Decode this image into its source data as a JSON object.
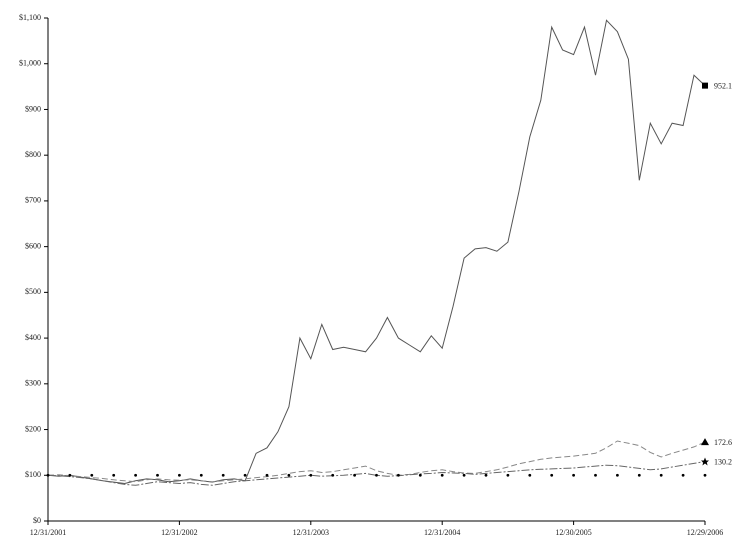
{
  "chart_data": {
    "type": "line",
    "categories": [
      "12/31/2001",
      null,
      null,
      null,
      null,
      null,
      null,
      null,
      null,
      null,
      null,
      null,
      "12/31/2002",
      null,
      null,
      null,
      null,
      null,
      null,
      null,
      null,
      null,
      null,
      null,
      "12/31/2003",
      null,
      null,
      null,
      null,
      null,
      null,
      null,
      null,
      null,
      null,
      null,
      "12/31/2004",
      null,
      null,
      null,
      null,
      null,
      null,
      null,
      null,
      null,
      null,
      null,
      "12/30/2005",
      null,
      null,
      null,
      null,
      null,
      null,
      null,
      null,
      null,
      null,
      null,
      "12/29/2006"
    ],
    "ylim": [
      0,
      1100
    ],
    "yticks": [
      {
        "value": 0,
        "label": "$0"
      },
      {
        "value": 100,
        "label": "$100"
      },
      {
        "value": 200,
        "label": "$200"
      },
      {
        "value": 300,
        "label": "$300"
      },
      {
        "value": 400,
        "label": "$400"
      },
      {
        "value": 500,
        "label": "$500"
      },
      {
        "value": 600,
        "label": "$600"
      },
      {
        "value": 700,
        "label": "$700"
      },
      {
        "value": 800,
        "label": "$800"
      },
      {
        "value": 900,
        "label": "$900"
      },
      {
        "value": 1000,
        "label": "$1,000"
      },
      {
        "value": 1100,
        "label": "$1,100"
      }
    ],
    "series": [
      {
        "color": "#555555",
        "dash": "none",
        "marker": "square",
        "end_label": "952.1",
        "values": [
          100,
          98,
          100,
          96,
          92,
          88,
          85,
          82,
          88,
          92,
          90,
          86,
          88,
          92,
          88,
          85,
          90,
          92,
          88,
          148,
          160,
          195,
          250,
          400,
          355,
          430,
          375,
          380,
          375,
          370,
          400,
          445,
          400,
          385,
          370,
          405,
          378,
          470,
          575,
          595,
          598,
          590,
          610,
          720,
          840,
          920,
          1080,
          1030,
          1020,
          1080,
          975,
          1095,
          1070,
          1010,
          745,
          870,
          825,
          870,
          865,
          975,
          952.1
        ]
      },
      {
        "color": "#888888",
        "dash": "6 3",
        "marker": "triangle",
        "end_label": "172.6",
        "values": [
          100,
          101,
          99,
          97,
          95,
          93,
          90,
          88,
          86,
          90,
          92,
          90,
          89,
          90,
          88,
          86,
          88,
          90,
          92,
          95,
          97,
          100,
          104,
          108,
          110,
          106,
          108,
          112,
          116,
          120,
          110,
          104,
          100,
          102,
          106,
          110,
          112,
          108,
          105,
          104,
          108,
          112,
          118,
          125,
          130,
          135,
          138,
          140,
          142,
          145,
          148,
          160,
          175,
          170,
          165,
          150,
          140,
          148,
          155,
          162,
          172.6
        ]
      },
      {
        "color": "#666666",
        "dash": "8 2 2 2",
        "marker": "star",
        "end_label": "130.2",
        "values": [
          100,
          99,
          97,
          95,
          92,
          88,
          84,
          80,
          78,
          82,
          86,
          84,
          82,
          84,
          80,
          78,
          82,
          86,
          88,
          90,
          92,
          94,
          96,
          98,
          100,
          98,
          99,
          100,
          102,
          104,
          100,
          98,
          99,
          101,
          103,
          104,
          106,
          105,
          104,
          102,
          104,
          106,
          108,
          110,
          112,
          113,
          114,
          115,
          116,
          118,
          120,
          122,
          121,
          118,
          115,
          112,
          114,
          118,
          122,
          126,
          130.2
        ]
      },
      {
        "color": "#000000",
        "dash": "1 10",
        "marker": "dot",
        "values": [
          100,
          100,
          100,
          100,
          100,
          100,
          100,
          100,
          100,
          100,
          100,
          100,
          100,
          100,
          100,
          100,
          100,
          100,
          100,
          100,
          100,
          100,
          100,
          100,
          100,
          100,
          100,
          100,
          100,
          100,
          100,
          100,
          100,
          100,
          100,
          100,
          100,
          100,
          100,
          100,
          100,
          100,
          100,
          100,
          100,
          100,
          100,
          100,
          100,
          100,
          100,
          100,
          100,
          100,
          100,
          100,
          100,
          100,
          100,
          100,
          100
        ]
      }
    ]
  }
}
